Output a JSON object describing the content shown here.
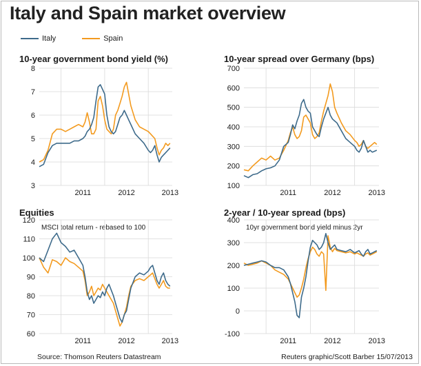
{
  "title": "Italy and Spain market overview",
  "legend": [
    {
      "name": "Italy",
      "color": "#3d6a8a"
    },
    {
      "name": "Spain",
      "color": "#f39a1e"
    }
  ],
  "colors": {
    "italy": "#3d6a8a",
    "spain": "#f39a1e",
    "grid": "#d9d9d9"
  },
  "footer": {
    "source": "Source: Thomson Reuters Datastream",
    "credit": "Reuters graphic/Scott Barber 15/07/2013"
  },
  "chart_data": [
    {
      "type": "line",
      "title": "10-year government bond yield (%)",
      "subtitle": "",
      "xlabel": "",
      "ylabel": "",
      "x": [
        2010.5,
        2010.6,
        2010.7,
        2010.8,
        2010.9,
        2011.0,
        2011.1,
        2011.2,
        2011.3,
        2011.4,
        2011.5,
        2011.55,
        2011.6,
        2011.65,
        2011.7,
        2011.75,
        2011.8,
        2011.85,
        2011.9,
        2011.95,
        2012.0,
        2012.05,
        2012.1,
        2012.15,
        2012.2,
        2012.25,
        2012.3,
        2012.35,
        2012.4,
        2012.45,
        2012.5,
        2012.55,
        2012.6,
        2012.7,
        2012.8,
        2012.9,
        2013.0,
        2013.05,
        2013.1,
        2013.15,
        2013.2,
        2013.25,
        2013.3,
        2013.35,
        2013.4,
        2013.45,
        2013.5
      ],
      "x_ticks": [
        2011,
        2012,
        2013
      ],
      "ylim": [
        3,
        8
      ],
      "y_ticks": [
        3,
        4,
        5,
        6,
        7,
        8
      ],
      "series": [
        {
          "name": "Italy",
          "values": [
            3.8,
            3.9,
            4.4,
            4.7,
            4.8,
            4.8,
            4.8,
            4.8,
            4.9,
            4.9,
            5.0,
            5.1,
            5.3,
            5.4,
            5.6,
            5.9,
            6.6,
            7.2,
            7.3,
            7.1,
            6.9,
            6.0,
            5.5,
            5.3,
            5.2,
            5.3,
            5.6,
            5.9,
            6.0,
            6.2,
            6.0,
            5.8,
            5.6,
            5.2,
            5.0,
            4.8,
            4.5,
            4.4,
            4.5,
            4.7,
            4.3,
            4.0,
            4.2,
            4.3,
            4.4,
            4.5,
            4.6
          ]
        },
        {
          "name": "Spain",
          "values": [
            4.0,
            4.1,
            4.5,
            5.2,
            5.4,
            5.4,
            5.3,
            5.4,
            5.5,
            5.6,
            5.5,
            5.7,
            6.1,
            5.7,
            5.2,
            5.2,
            5.4,
            6.6,
            6.8,
            6.4,
            5.8,
            5.4,
            5.3,
            5.2,
            5.4,
            6.0,
            6.2,
            6.5,
            6.8,
            7.2,
            7.4,
            6.9,
            6.4,
            5.8,
            5.5,
            5.4,
            5.3,
            5.2,
            5.1,
            5.0,
            4.6,
            4.3,
            4.5,
            4.6,
            4.8,
            4.7,
            4.8
          ]
        }
      ]
    },
    {
      "type": "line",
      "title": "10-year spread over Germany (bps)",
      "subtitle": "",
      "xlabel": "",
      "ylabel": "",
      "x": [
        2010.5,
        2010.6,
        2010.7,
        2010.8,
        2010.9,
        2011.0,
        2011.1,
        2011.2,
        2011.3,
        2011.4,
        2011.5,
        2011.55,
        2011.6,
        2011.65,
        2011.7,
        2011.75,
        2011.8,
        2011.85,
        2011.9,
        2011.95,
        2012.0,
        2012.05,
        2012.1,
        2012.15,
        2012.2,
        2012.25,
        2012.3,
        2012.35,
        2012.4,
        2012.45,
        2012.5,
        2012.55,
        2012.6,
        2012.7,
        2012.8,
        2012.9,
        2013.0,
        2013.05,
        2013.1,
        2013.15,
        2013.2,
        2013.25,
        2013.3,
        2013.35,
        2013.4,
        2013.45,
        2013.5
      ],
      "x_ticks": [
        2011,
        2012,
        2013
      ],
      "ylim": [
        100,
        700
      ],
      "y_ticks": [
        100,
        200,
        300,
        400,
        500,
        600,
        700
      ],
      "series": [
        {
          "name": "Italy",
          "values": [
            150,
            140,
            155,
            160,
            175,
            185,
            190,
            200,
            230,
            300,
            320,
            360,
            410,
            390,
            430,
            460,
            520,
            540,
            500,
            480,
            470,
            400,
            380,
            360,
            350,
            400,
            440,
            470,
            500,
            460,
            440,
            430,
            420,
            380,
            340,
            320,
            300,
            280,
            270,
            290,
            330,
            300,
            270,
            280,
            270,
            275,
            280
          ]
        },
        {
          "name": "Spain",
          "values": [
            180,
            175,
            200,
            220,
            240,
            230,
            250,
            230,
            240,
            280,
            330,
            370,
            400,
            360,
            340,
            350,
            380,
            450,
            460,
            440,
            420,
            360,
            340,
            350,
            370,
            430,
            480,
            520,
            560,
            620,
            580,
            500,
            470,
            420,
            380,
            360,
            330,
            320,
            300,
            310,
            330,
            300,
            290,
            300,
            310,
            320,
            310
          ]
        }
      ]
    },
    {
      "type": "line",
      "title": "Equities",
      "subtitle": "MSCI total return - rebased to 100",
      "xlabel": "",
      "ylabel": "",
      "x": [
        2010.5,
        2010.6,
        2010.7,
        2010.8,
        2010.9,
        2011.0,
        2011.1,
        2011.2,
        2011.3,
        2011.4,
        2011.5,
        2011.55,
        2011.6,
        2011.65,
        2011.7,
        2011.75,
        2011.8,
        2011.85,
        2011.9,
        2011.95,
        2012.0,
        2012.05,
        2012.1,
        2012.15,
        2012.2,
        2012.25,
        2012.3,
        2012.35,
        2012.4,
        2012.45,
        2012.5,
        2012.55,
        2012.6,
        2012.7,
        2012.8,
        2012.9,
        2013.0,
        2013.05,
        2013.1,
        2013.15,
        2013.2,
        2013.25,
        2013.3,
        2013.35,
        2013.4,
        2013.45,
        2013.5
      ],
      "x_ticks": [
        2011,
        2012,
        2013
      ],
      "ylim": [
        60,
        120
      ],
      "y_ticks": [
        60,
        70,
        80,
        90,
        100,
        110,
        120
      ],
      "series": [
        {
          "name": "Italy",
          "values": [
            100,
            98,
            104,
            110,
            113,
            108,
            106,
            103,
            104,
            100,
            96,
            90,
            82,
            78,
            80,
            76,
            78,
            80,
            79,
            82,
            80,
            84,
            86,
            83,
            80,
            76,
            72,
            68,
            66,
            70,
            72,
            78,
            84,
            90,
            92,
            91,
            93,
            95,
            96,
            92,
            88,
            86,
            90,
            92,
            88,
            86,
            85
          ]
        },
        {
          "name": "Spain",
          "values": [
            100,
            95,
            92,
            99,
            98,
            96,
            100,
            98,
            97,
            95,
            93,
            88,
            80,
            82,
            85,
            80,
            82,
            84,
            83,
            86,
            84,
            82,
            80,
            78,
            76,
            72,
            68,
            64,
            66,
            70,
            74,
            80,
            85,
            88,
            89,
            88,
            90,
            91,
            92,
            89,
            86,
            84,
            86,
            88,
            85,
            84,
            84
          ]
        }
      ]
    },
    {
      "type": "line",
      "title": "2-year / 10-year spread (bps)",
      "subtitle": "10yr government bond yield minus 2yr",
      "xlabel": "",
      "ylabel": "",
      "x": [
        2010.5,
        2010.6,
        2010.7,
        2010.8,
        2010.9,
        2011.0,
        2011.1,
        2011.2,
        2011.3,
        2011.4,
        2011.5,
        2011.55,
        2011.6,
        2011.65,
        2011.7,
        2011.75,
        2011.8,
        2011.85,
        2011.9,
        2011.95,
        2012.0,
        2012.05,
        2012.1,
        2012.15,
        2012.2,
        2012.25,
        2012.3,
        2012.35,
        2012.4,
        2012.45,
        2012.5,
        2012.55,
        2012.6,
        2012.7,
        2012.8,
        2012.9,
        2013.0,
        2013.05,
        2013.1,
        2013.15,
        2013.2,
        2013.25,
        2013.3,
        2013.35,
        2013.4,
        2013.45,
        2013.5
      ],
      "x_ticks": [
        2011,
        2012,
        2013
      ],
      "ylim": [
        -100,
        400
      ],
      "y_ticks": [
        -100,
        0,
        100,
        200,
        300,
        400
      ],
      "series": [
        {
          "name": "Italy",
          "values": [
            200,
            205,
            210,
            215,
            220,
            215,
            200,
            190,
            190,
            180,
            150,
            120,
            80,
            40,
            -20,
            -30,
            60,
            100,
            150,
            220,
            280,
            310,
            300,
            290,
            270,
            280,
            300,
            340,
            300,
            270,
            280,
            290,
            270,
            265,
            260,
            270,
            255,
            260,
            265,
            250,
            240,
            260,
            270,
            250,
            255,
            260,
            265
          ]
        },
        {
          "name": "Spain",
          "values": [
            210,
            200,
            205,
            210,
            220,
            210,
            200,
            180,
            170,
            160,
            140,
            120,
            100,
            80,
            60,
            70,
            100,
            140,
            190,
            230,
            260,
            280,
            270,
            250,
            240,
            260,
            250,
            90,
            330,
            280,
            260,
            275,
            265,
            260,
            255,
            260,
            250,
            255,
            250,
            245,
            240,
            250,
            255,
            245,
            250,
            255,
            260
          ]
        }
      ]
    }
  ]
}
